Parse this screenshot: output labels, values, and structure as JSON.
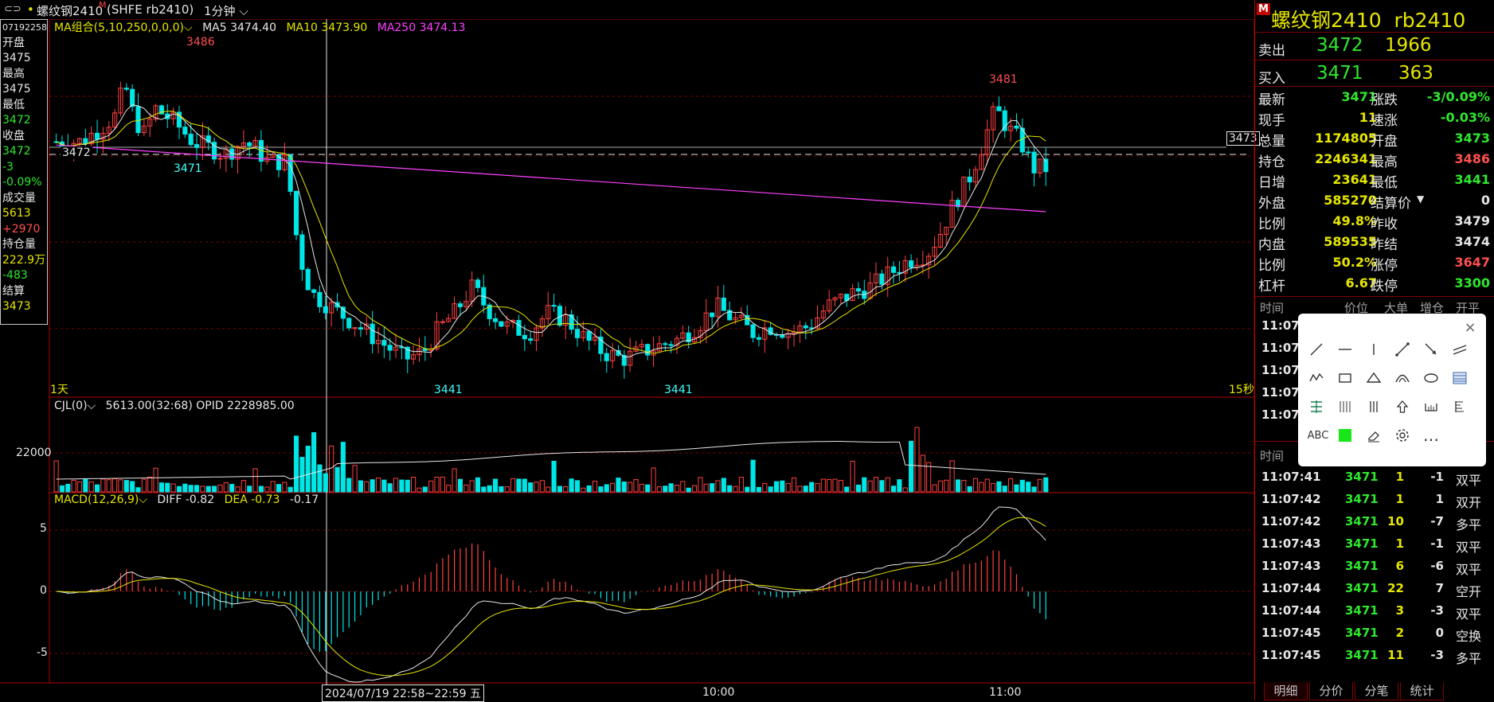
{
  "topbar": {
    "icons": "window-control-icons",
    "dot": "•",
    "symbol_name": "螺纹钢2410",
    "m_badge": "M",
    "symbol_code": "(SHFE rb2410)",
    "period": "1分钟"
  },
  "left_info": [
    {
      "text": "07192258",
      "color": "white",
      "small": true
    },
    {
      "text": "开盘",
      "color": "white"
    },
    {
      "text": "3475",
      "color": "white"
    },
    {
      "text": "最高",
      "color": "white"
    },
    {
      "text": "3475",
      "color": "white"
    },
    {
      "text": "最低",
      "color": "white"
    },
    {
      "text": "3472",
      "color": "grn"
    },
    {
      "text": "收盘",
      "color": "white"
    },
    {
      "text": "3472",
      "color": "grn"
    },
    {
      "text": "-3",
      "color": "grn"
    },
    {
      "text": "-0.09%",
      "color": "grn"
    },
    {
      "text": "成交量",
      "color": "white"
    },
    {
      "text": "5613",
      "color": "yel"
    },
    {
      "text": "+2970",
      "color": "red"
    },
    {
      "text": "持仓量",
      "color": "white"
    },
    {
      "text": "222.9万",
      "color": "yel"
    },
    {
      "text": "-483",
      "color": "grn"
    },
    {
      "text": "结算",
      "color": "white"
    },
    {
      "text": "3473",
      "color": "yel"
    }
  ],
  "main_chart": {
    "legend": {
      "ma_group": "MA组合(5,10,250,0,0,0)",
      "ma5": "MA5 3474.40",
      "ma10": "MA10 3473.90",
      "ma250": "MA250 3474.13"
    },
    "period_label": "1天",
    "interval_label": "15秒",
    "price_tag_left": "3472",
    "price_tag_right": "3473",
    "annotations": {
      "high1": "3486",
      "low1": "3471",
      "low2": "3441",
      "low3": "3441",
      "high2": "3481"
    }
  },
  "volume_chart": {
    "legend": "CJL(0)",
    "values": "5613.00(32:68)  OPID 2228985.00",
    "axis_label": "22000"
  },
  "macd_chart": {
    "legend": "MACD(12,26,9)",
    "diff": "DIFF -0.82",
    "dea": "DEA -0.73",
    "macd": "-0.17",
    "axis": [
      "5",
      "0",
      "-5"
    ]
  },
  "time_axis": {
    "cursor_label": "2024/07/19 22:58~22:59 五",
    "ticks": [
      "10:00",
      "11:00"
    ]
  },
  "chart_data": {
    "type": "candlestick",
    "price_range": [
      3438,
      3490
    ],
    "highs_marked": [
      3486,
      3481
    ],
    "lows_marked": [
      3471,
      3441,
      3441
    ],
    "macd_ylim": [
      -7,
      7
    ],
    "volume_axis_mark": 22000
  },
  "right_panel": {
    "title": "螺纹钢2410  rb2410",
    "m_badge": "M",
    "sell": {
      "label": "卖出",
      "price": "3472",
      "qty": "1966"
    },
    "buy": {
      "label": "买入",
      "price": "3471",
      "qty": "363"
    },
    "quotes_left": [
      {
        "label": "最新",
        "value": "3471",
        "color": "grn"
      },
      {
        "label": "现手",
        "value": "11",
        "color": "yel"
      },
      {
        "label": "总量",
        "value": "1174805",
        "color": "yel"
      },
      {
        "label": "持仓",
        "value": "2246341",
        "color": "yel"
      },
      {
        "label": "日增",
        "value": "23641",
        "color": "yel"
      },
      {
        "label": "外盘",
        "value": "585270",
        "color": "yel"
      },
      {
        "label": "比例",
        "value": "49.8%",
        "color": "yel"
      },
      {
        "label": "内盘",
        "value": "589535",
        "color": "yel"
      },
      {
        "label": "比例",
        "value": "50.2%",
        "color": "yel"
      },
      {
        "label": "杠杆",
        "value": "6.67",
        "color": "yel"
      }
    ],
    "quotes_right": [
      {
        "label": "涨跌",
        "value": "-3/0.09%",
        "color": "grn"
      },
      {
        "label": "速涨",
        "value": "-0.03%",
        "color": "grn"
      },
      {
        "label": "开盘",
        "value": "3473",
        "color": "grn"
      },
      {
        "label": "最高",
        "value": "3486",
        "color": "red"
      },
      {
        "label": "最低",
        "value": "3441",
        "color": "grn"
      },
      {
        "label": "结算价",
        "value": "0",
        "color": "white"
      },
      {
        "label": "昨收",
        "value": "3479",
        "color": "white"
      },
      {
        "label": "昨结",
        "value": "3474",
        "color": "white"
      },
      {
        "label": "涨停",
        "value": "3647",
        "color": "red"
      },
      {
        "label": "跌停",
        "value": "3300",
        "color": "grn"
      }
    ],
    "upper_header": {
      "time": "时间",
      "price": "价位",
      "big": "大单",
      "inc": "增仓",
      "open": "开平"
    },
    "upper_times": [
      "11:07",
      "11:07",
      "11:07",
      "11:07",
      "11:07"
    ],
    "lower_header": {
      "time": "时间"
    },
    "ticks": [
      {
        "time": "11:07:41",
        "price": "3471",
        "qty": "1",
        "inc": "-1",
        "type": "双平",
        "inc_color": "white",
        "type_color": "white"
      },
      {
        "time": "11:07:42",
        "price": "3471",
        "qty": "1",
        "inc": "1",
        "type": "双开",
        "inc_color": "white",
        "type_color": "white"
      },
      {
        "time": "11:07:42",
        "price": "3471",
        "qty": "10",
        "inc": "-7",
        "type": "多平",
        "inc_color": "white",
        "type_color": "white"
      },
      {
        "time": "11:07:43",
        "price": "3471",
        "qty": "1",
        "inc": "-1",
        "type": "双平",
        "inc_color": "white",
        "type_color": "white"
      },
      {
        "time": "11:07:43",
        "price": "3471",
        "qty": "6",
        "inc": "-6",
        "type": "双平",
        "inc_color": "white",
        "type_color": "white"
      },
      {
        "time": "11:07:44",
        "price": "3471",
        "qty": "22",
        "inc": "7",
        "type": "空开",
        "inc_color": "white",
        "type_color": "white"
      },
      {
        "time": "11:07:44",
        "price": "3471",
        "qty": "3",
        "inc": "-3",
        "type": "双平",
        "inc_color": "white",
        "type_color": "white"
      },
      {
        "time": "11:07:45",
        "price": "3471",
        "qty": "2",
        "inc": "0",
        "type": "空换",
        "inc_color": "white",
        "type_color": "white"
      },
      {
        "time": "11:07:45",
        "price": "3471",
        "qty": "11",
        "inc": "-3",
        "type": "多平",
        "inc_color": "white",
        "type_color": "white"
      }
    ],
    "tabs": [
      "明细",
      "分价",
      "分笔",
      "统计"
    ],
    "toolbox_tools": [
      "line-tool",
      "hline-tool",
      "vline-tool",
      "ray-tool",
      "arrow-tool",
      "parallel-tool",
      "wave-tool",
      "rect-tool",
      "triangle-tool",
      "arc-tool",
      "ellipse-tool",
      "fib-tool",
      "channel-tool",
      "grid-tool",
      "cycle-tool",
      "up-arrow-tool",
      "ruler-tool",
      "gann-tool",
      "text-tool",
      "color-tool",
      "eraser-tool",
      "settings-tool",
      "more-tool"
    ],
    "toolbox_text": "ABC",
    "toolbox_more": "…",
    "toolbox_close": "×"
  },
  "colors": {
    "up": "#ff4040",
    "down": "#00e5e5",
    "ma5": "#e6e6e6",
    "ma10": "#e6e600",
    "ma250": "#ff40ff",
    "grid": "#800000"
  }
}
